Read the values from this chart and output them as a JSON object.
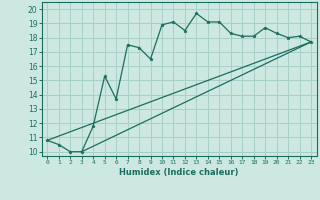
{
  "title": "",
  "xlabel": "Humidex (Indice chaleur)",
  "bg_color": "#cce8e0",
  "line_color": "#1a6e60",
  "grid_color": "#a8d0c8",
  "xlim": [
    -0.5,
    23.5
  ],
  "ylim": [
    9.7,
    20.5
  ],
  "xticks": [
    0,
    1,
    2,
    3,
    4,
    5,
    6,
    7,
    8,
    9,
    10,
    11,
    12,
    13,
    14,
    15,
    16,
    17,
    18,
    19,
    20,
    21,
    22,
    23
  ],
  "yticks": [
    10,
    11,
    12,
    13,
    14,
    15,
    16,
    17,
    18,
    19,
    20
  ],
  "line1_x": [
    0,
    1,
    2,
    3,
    4,
    5,
    6,
    7,
    8,
    9,
    10,
    11,
    12,
    13,
    14,
    15,
    16,
    17,
    18,
    19,
    20,
    21,
    22,
    23
  ],
  "line1_y": [
    10.8,
    10.5,
    10.0,
    10.0,
    11.8,
    15.3,
    13.7,
    17.5,
    17.3,
    16.5,
    18.9,
    19.1,
    18.5,
    19.7,
    19.1,
    19.1,
    18.3,
    18.1,
    18.1,
    18.7,
    18.3,
    18.0,
    18.1,
    17.7
  ],
  "line2_x": [
    0,
    23
  ],
  "line2_y": [
    10.8,
    17.7
  ],
  "line3_x": [
    3,
    23
  ],
  "line3_y": [
    10.0,
    17.7
  ]
}
